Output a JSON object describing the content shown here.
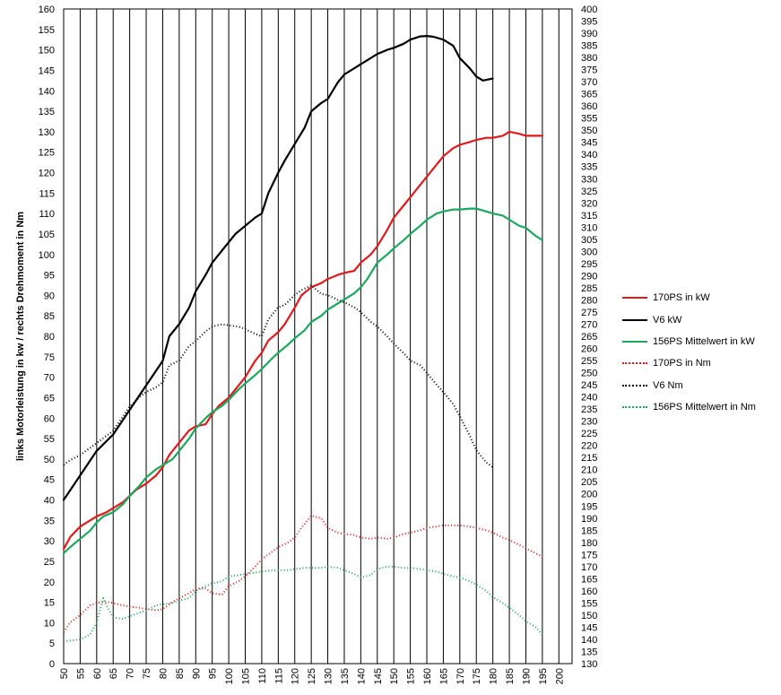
{
  "chart_data": {
    "type": "line",
    "title": "",
    "ylabel": "links Motorleistung in kw / rechts Drehmoment in Nm",
    "xlabel": "",
    "x_ticks": [
      50,
      55,
      60,
      65,
      70,
      75,
      80,
      85,
      90,
      95,
      100,
      105,
      110,
      115,
      120,
      125,
      130,
      135,
      140,
      145,
      150,
      155,
      160,
      165,
      170,
      175,
      180,
      185,
      190,
      195,
      200
    ],
    "xlim": [
      50,
      204
    ],
    "ylim_left": [
      0,
      160
    ],
    "ylim_right": [
      130,
      400
    ],
    "y_left_ticks": [
      0,
      5,
      10,
      15,
      20,
      25,
      30,
      35,
      40,
      45,
      50,
      55,
      60,
      65,
      70,
      75,
      80,
      85,
      90,
      95,
      100,
      105,
      110,
      115,
      120,
      125,
      130,
      135,
      140,
      145,
      150,
      155,
      160
    ],
    "y_right_ticks": [
      130,
      135,
      140,
      145,
      150,
      155,
      160,
      165,
      170,
      175,
      180,
      185,
      190,
      195,
      200,
      205,
      210,
      215,
      220,
      225,
      230,
      235,
      240,
      245,
      250,
      255,
      260,
      265,
      270,
      275,
      280,
      285,
      290,
      295,
      300,
      305,
      310,
      315,
      320,
      325,
      330,
      335,
      340,
      345,
      350,
      355,
      360,
      365,
      370,
      375,
      380,
      385,
      390,
      395,
      400
    ],
    "grid": "vertical",
    "legend_position": "right",
    "series": [
      {
        "name": "170PS in kW",
        "axis": "left",
        "color": "#e31a1c",
        "style": "solid",
        "x": [
          50,
          52,
          55,
          58,
          60,
          63,
          65,
          68,
          70,
          72,
          75,
          78,
          80,
          82,
          85,
          88,
          90,
          93,
          95,
          97,
          100,
          103,
          105,
          108,
          110,
          112,
          115,
          117,
          120,
          122,
          125,
          128,
          130,
          133,
          135,
          138,
          140,
          143,
          145,
          148,
          150,
          153,
          155,
          158,
          160,
          163,
          165,
          168,
          170,
          173,
          175,
          178,
          180,
          183,
          185,
          188,
          190,
          192,
          193,
          195
        ],
        "y": [
          28,
          31,
          33.5,
          35,
          36,
          37,
          38,
          39.5,
          41,
          42.5,
          44,
          46,
          48,
          51,
          54,
          57,
          58,
          58.5,
          61,
          63,
          65,
          68,
          70,
          74,
          76,
          79,
          81,
          83,
          87,
          90,
          92,
          93,
          94,
          95,
          95.5,
          96,
          98,
          100,
          102,
          106,
          109,
          112,
          114,
          117,
          119,
          122,
          124,
          126,
          126.8,
          127.5,
          128,
          128.5,
          128.5,
          129,
          130,
          129.5,
          129,
          129,
          129,
          129
        ]
      },
      {
        "name": "V6 kW",
        "axis": "left",
        "color": "#000000",
        "style": "solid",
        "x": [
          50,
          55,
          60,
          65,
          70,
          75,
          80,
          82,
          85,
          88,
          90,
          93,
          95,
          98,
          100,
          102,
          105,
          108,
          110,
          112,
          115,
          117,
          120,
          123,
          125,
          128,
          130,
          133,
          135,
          138,
          140,
          143,
          145,
          148,
          150,
          153,
          155,
          158,
          160,
          162,
          165,
          168,
          170,
          173,
          175,
          177,
          180
        ],
        "y": [
          40,
          46,
          52,
          56,
          62,
          68,
          74,
          80,
          83,
          87,
          91,
          95,
          98,
          101,
          103,
          105,
          107,
          109,
          110,
          115,
          120,
          123,
          127,
          131,
          135,
          137,
          138,
          142,
          144,
          145.5,
          146.5,
          148,
          149,
          150,
          150.5,
          151.5,
          152.5,
          153.3,
          153.4,
          153.2,
          152.5,
          151,
          148,
          145.5,
          143.5,
          142.5,
          143
        ]
      },
      {
        "name": "156PS Mittelwert in kW",
        "axis": "left",
        "color": "#1aa85c",
        "style": "solid",
        "x": [
          50,
          52,
          55,
          58,
          60,
          62,
          65,
          68,
          70,
          73,
          75,
          78,
          80,
          83,
          85,
          88,
          90,
          93,
          95,
          98,
          100,
          103,
          105,
          108,
          110,
          113,
          115,
          118,
          120,
          123,
          125,
          128,
          130,
          133,
          135,
          138,
          140,
          142,
          145,
          148,
          150,
          153,
          155,
          158,
          160,
          163,
          165,
          168,
          170,
          173,
          175,
          178,
          180,
          183,
          185,
          188,
          190,
          193,
          195
        ],
        "y": [
          27,
          28.5,
          30.5,
          32.5,
          34.5,
          36,
          37,
          39,
          41,
          43.5,
          45.5,
          47.5,
          48.5,
          50,
          52,
          55,
          57.5,
          60,
          61.5,
          63,
          64.5,
          67,
          68.5,
          70.5,
          72,
          74.5,
          76,
          78,
          79.5,
          81.5,
          83.5,
          85,
          86.5,
          88,
          89,
          90.5,
          92,
          94,
          98,
          100,
          101.5,
          103.5,
          105,
          107,
          108.5,
          110,
          110.5,
          111,
          111,
          111.2,
          111.2,
          110.5,
          110,
          109.5,
          108.5,
          107,
          106.5,
          104.5,
          103.5
        ]
      },
      {
        "name": "170PS in Nm",
        "axis": "right",
        "color": "#e31a1c",
        "style": "dotted",
        "x": [
          50,
          52,
          55,
          58,
          60,
          63,
          65,
          68,
          70,
          73,
          75,
          78,
          80,
          83,
          85,
          88,
          90,
          93,
          95,
          98,
          100,
          103,
          105,
          108,
          110,
          113,
          115,
          118,
          120,
          122,
          125,
          128,
          130,
          133,
          135,
          138,
          140,
          143,
          145,
          148,
          150,
          153,
          155,
          158,
          160,
          163,
          165,
          168,
          170,
          173,
          175,
          178,
          180,
          183,
          185,
          188,
          190,
          193,
          195
        ],
        "y": [
          143,
          147,
          150,
          154,
          155,
          155.5,
          155,
          154,
          153.5,
          153,
          152.5,
          152,
          152.5,
          155.5,
          157,
          159,
          161,
          161,
          159,
          158.5,
          162,
          164,
          166,
          170,
          173,
          176,
          178,
          180,
          182,
          186,
          191,
          190,
          186,
          184,
          183.5,
          183,
          182,
          181.5,
          182,
          181.5,
          182,
          183.5,
          184,
          185,
          186,
          186.5,
          187,
          187,
          187,
          186.5,
          186,
          185,
          184,
          182,
          181,
          179,
          177.5,
          175.5,
          174
        ]
      },
      {
        "name": "V6 Nm",
        "axis": "right",
        "color": "#000000",
        "style": "dotted",
        "x": [
          50,
          52,
          55,
          58,
          60,
          63,
          65,
          68,
          70,
          73,
          75,
          78,
          80,
          82,
          85,
          88,
          90,
          93,
          95,
          98,
          100,
          103,
          105,
          108,
          110,
          112,
          115,
          117,
          120,
          122,
          125,
          128,
          130,
          133,
          135,
          138,
          140,
          143,
          145,
          148,
          150,
          153,
          155,
          158,
          160,
          163,
          165,
          168,
          170,
          173,
          175,
          178,
          180
        ],
        "y": [
          212,
          214,
          216,
          219,
          221,
          224,
          226,
          232,
          236,
          240,
          242,
          244,
          246,
          253,
          255,
          261,
          263,
          267,
          269,
          270,
          269.5,
          269,
          268,
          266,
          265,
          272,
          277,
          278,
          282,
          284,
          286,
          282.5,
          282,
          280,
          279,
          277,
          275,
          271,
          269,
          265,
          262,
          258,
          255,
          253,
          250,
          245,
          242,
          237,
          232,
          224,
          218,
          213,
          211
        ]
      },
      {
        "name": "156PS Mittelwert in Nm",
        "axis": "right",
        "color": "#1aa85c",
        "style": "dotted",
        "x": [
          50,
          52,
          55,
          58,
          60,
          62,
          63,
          65,
          68,
          70,
          73,
          75,
          78,
          80,
          83,
          85,
          88,
          90,
          93,
          95,
          98,
          100,
          103,
          105,
          108,
          110,
          113,
          115,
          118,
          120,
          123,
          125,
          128,
          130,
          133,
          135,
          138,
          140,
          143,
          145,
          148,
          150,
          153,
          155,
          158,
          160,
          163,
          165,
          168,
          170,
          173,
          175,
          178,
          180,
          183,
          185,
          188,
          190,
          193,
          195
        ],
        "y": [
          139,
          139.5,
          140,
          142,
          147,
          157,
          154,
          149,
          148.5,
          149.5,
          151,
          152,
          154,
          154.5,
          155,
          156,
          157,
          160,
          162,
          163,
          164,
          166,
          166.5,
          167,
          167.5,
          168,
          168.5,
          168.5,
          168.5,
          169,
          169.5,
          169.5,
          169.5,
          170,
          169.5,
          168.5,
          167,
          165.5,
          166.5,
          169,
          170,
          170,
          169.5,
          169.5,
          169,
          168.5,
          168,
          167,
          166,
          165.5,
          164,
          162.5,
          160,
          157.5,
          155,
          153,
          150,
          147.5,
          145,
          142
        ]
      }
    ]
  }
}
